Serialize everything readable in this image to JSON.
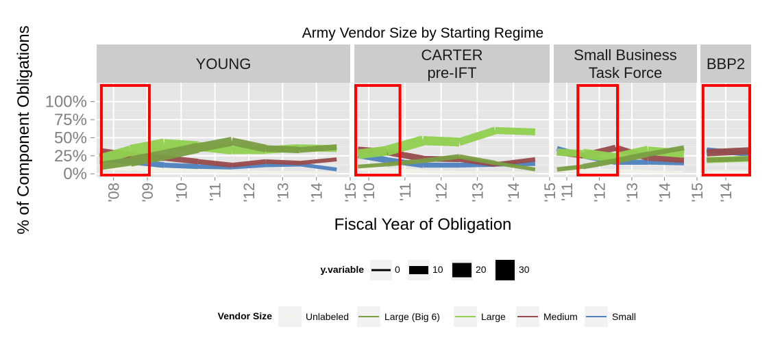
{
  "title": "Army Vendor Size by Starting Regime",
  "chart_data": {
    "type": "line",
    "title": "Army Vendor Size by Starting Regime",
    "xlabel": "Fiscal Year of Obligation",
    "ylabel": "% of Component Obligations",
    "ylim": [
      0,
      1
    ],
    "y_ticks": [
      "0%",
      "25%",
      "50%",
      "75%",
      "100%"
    ],
    "y_tick_values": [
      0,
      0.25,
      0.5,
      0.75,
      1
    ],
    "grid": true,
    "legend_position": "bottom",
    "size_legend": {
      "title": "y.variable",
      "entries": [
        {
          "label": "0",
          "value": 0
        },
        {
          "label": "10",
          "value": 10
        },
        {
          "label": "20",
          "value": 20
        },
        {
          "label": "30",
          "value": 30
        }
      ]
    },
    "color_legend": {
      "title": "Vendor Size",
      "entries": [
        {
          "label": "Unlabeled",
          "color": "#F2F2E8"
        },
        {
          "label": "Large (Big 6)",
          "color": "#7B9E43"
        },
        {
          "label": "Large",
          "color": "#92D050"
        },
        {
          "label": "Medium",
          "color": "#984B4B"
        },
        {
          "label": "Small",
          "color": "#4F81BD"
        }
      ]
    },
    "panels": [
      {
        "label": "YOUNG",
        "xlim": [
          2007.5,
          2015
        ],
        "x_ticks": [
          2008,
          2009,
          2010,
          2011,
          2012,
          2013,
          2014,
          2015
        ],
        "x_tick_labels": [
          "'08",
          "'09",
          "'10",
          "'11",
          "'12",
          "'13",
          "'14",
          "'15"
        ],
        "highlight": [
          2007.6,
          2009.1
        ],
        "series": [
          {
            "vendor": "Unlabeled",
            "x": [
              2007.6,
              2008.5,
              2009.5,
              2010.5,
              2011.5,
              2012.5,
              2013.5,
              2014.6
            ],
            "y": [
              0.1,
              0.08,
              0.05,
              0.04,
              0.03,
              0.02,
              0.02,
              0.01
            ],
            "size": [
              10,
              8,
              6,
              5,
              4,
              3,
              3,
              2
            ]
          },
          {
            "vendor": "Small",
            "x": [
              2007.6,
              2008.5,
              2009.5,
              2010.5,
              2011.5,
              2012.5,
              2013.5,
              2014.6
            ],
            "y": [
              0.22,
              0.17,
              0.12,
              0.1,
              0.09,
              0.12,
              0.13,
              0.06
            ],
            "size": [
              10,
              8,
              7,
              6,
              5,
              5,
              5,
              4
            ]
          },
          {
            "vendor": "Medium",
            "x": [
              2007.6,
              2008.5,
              2009.5,
              2010.5,
              2011.5,
              2012.5,
              2013.5,
              2014.6
            ],
            "y": [
              0.31,
              0.25,
              0.22,
              0.17,
              0.12,
              0.17,
              0.15,
              0.2
            ],
            "size": [
              10,
              9,
              8,
              7,
              6,
              6,
              5,
              5
            ]
          },
          {
            "vendor": "Large",
            "x": [
              2007.6,
              2008.5,
              2009.5,
              2010.5,
              2011.5,
              2012.5,
              2013.5,
              2014.6
            ],
            "y": [
              0.2,
              0.32,
              0.41,
              0.38,
              0.33,
              0.33,
              0.36,
              0.35
            ],
            "size": [
              12,
              18,
              16,
              14,
              12,
              11,
              10,
              9
            ]
          },
          {
            "vendor": "Large (Big 6)",
            "x": [
              2007.6,
              2008.5,
              2009.5,
              2010.5,
              2011.5,
              2012.5,
              2013.5,
              2014.6
            ],
            "y": [
              0.11,
              0.17,
              0.26,
              0.36,
              0.45,
              0.35,
              0.33,
              0.37
            ],
            "size": [
              10,
              14,
              16,
              14,
              12,
              10,
              8,
              7
            ]
          }
        ]
      },
      {
        "label": "CARTER\npre-IFT",
        "xlim": [
          2009.6,
          2015
        ],
        "x_ticks": [
          2010,
          2011,
          2012,
          2013,
          2014,
          2015
        ],
        "x_tick_labels": [
          "'10",
          "'11",
          "'12",
          "'13",
          "'14",
          "'15"
        ],
        "highlight": [
          2009.6,
          2010.9
        ],
        "series": [
          {
            "vendor": "Unlabeled",
            "x": [
              2009.7,
              2010.5,
              2011.5,
              2012.5,
              2013.5,
              2014.6
            ],
            "y": [
              0.08,
              0.05,
              0.03,
              0.02,
              0.02,
              0.01
            ],
            "size": [
              8,
              6,
              4,
              3,
              3,
              2
            ]
          },
          {
            "vendor": "Small",
            "x": [
              2009.7,
              2010.5,
              2011.5,
              2012.5,
              2013.5,
              2014.6
            ],
            "y": [
              0.26,
              0.19,
              0.12,
              0.12,
              0.13,
              0.14
            ],
            "size": [
              9,
              8,
              7,
              6,
              6,
              5
            ]
          },
          {
            "vendor": "Medium",
            "x": [
              2009.7,
              2010.5,
              2011.5,
              2012.5,
              2013.5,
              2014.6
            ],
            "y": [
              0.33,
              0.3,
              0.21,
              0.2,
              0.13,
              0.2
            ],
            "size": [
              10,
              9,
              8,
              7,
              6,
              5
            ]
          },
          {
            "vendor": "Large",
            "x": [
              2009.7,
              2010.5,
              2011.5,
              2012.5,
              2013.5,
              2014.6
            ],
            "y": [
              0.27,
              0.32,
              0.46,
              0.44,
              0.6,
              0.58
            ],
            "size": [
              12,
              16,
              14,
              12,
              10,
              9
            ]
          },
          {
            "vendor": "Large (Big 6)",
            "x": [
              2009.7,
              2010.5,
              2011.5,
              2012.5,
              2013.5,
              2014.6
            ],
            "y": [
              0.1,
              0.13,
              0.18,
              0.24,
              0.15,
              0.06
            ],
            "size": [
              4,
              5,
              6,
              6,
              5,
              4
            ]
          }
        ]
      },
      {
        "label": "Small Business\nTask Force",
        "xlim": [
          2010.6,
          2015
        ],
        "x_ticks": [
          2011,
          2012,
          2013,
          2014,
          2015
        ],
        "x_tick_labels": [
          "'11",
          "'12",
          "'13",
          "'14",
          "'15"
        ],
        "highlight": [
          2011.3,
          2012.6
        ],
        "series": [
          {
            "vendor": "Unlabeled",
            "x": [
              2010.7,
              2011.5,
              2012.5,
              2013.5,
              2014.6
            ],
            "y": [
              0.06,
              0.05,
              0.04,
              0.03,
              0.02
            ],
            "size": [
              5,
              5,
              4,
              3,
              3
            ]
          },
          {
            "vendor": "Small",
            "x": [
              2010.7,
              2011.5,
              2012.5,
              2013.5,
              2014.6
            ],
            "y": [
              0.35,
              0.25,
              0.16,
              0.16,
              0.15
            ],
            "size": [
              6,
              7,
              7,
              6,
              6
            ]
          },
          {
            "vendor": "Medium",
            "x": [
              2010.7,
              2011.5,
              2012.5,
              2013.5,
              2014.6
            ],
            "y": [
              0.3,
              0.25,
              0.36,
              0.22,
              0.19
            ],
            "size": [
              7,
              8,
              9,
              8,
              7
            ]
          },
          {
            "vendor": "Large",
            "x": [
              2010.7,
              2011.5,
              2012.5,
              2013.5,
              2014.6
            ],
            "y": [
              0.3,
              0.28,
              0.22,
              0.32,
              0.28
            ],
            "size": [
              8,
              12,
              16,
              13,
              11
            ]
          },
          {
            "vendor": "Large (Big 6)",
            "x": [
              2010.7,
              2011.5,
              2012.5,
              2013.5,
              2014.6
            ],
            "y": [
              0.06,
              0.1,
              0.18,
              0.27,
              0.36
            ],
            "size": [
              5,
              6,
              8,
              7,
              6
            ]
          }
        ]
      },
      {
        "label": "BBP2",
        "xlim": [
          2013.6,
          2014.4
        ],
        "x_ticks": [
          2014
        ],
        "x_tick_labels": [
          "'14"
        ],
        "highlight": [
          2013.62,
          2014.4
        ],
        "series": [
          {
            "vendor": "Unlabeled",
            "x": [
              2013.7,
              2014.4
            ],
            "y": [
              0.03,
              0.03
            ],
            "size": [
              4,
              4
            ]
          },
          {
            "vendor": "Small",
            "x": [
              2013.7,
              2014.4
            ],
            "y": [
              0.33,
              0.27
            ],
            "size": [
              7,
              7
            ]
          },
          {
            "vendor": "Medium",
            "x": [
              2013.7,
              2014.4
            ],
            "y": [
              0.29,
              0.32
            ],
            "size": [
              10,
              10
            ]
          },
          {
            "vendor": "Large",
            "x": [
              2013.7,
              2014.4
            ],
            "y": [
              0.19,
              0.21
            ],
            "size": [
              8,
              8
            ]
          },
          {
            "vendor": "Large (Big 6)",
            "x": [
              2013.7,
              2014.4
            ],
            "y": [
              0.19,
              0.21
            ],
            "size": [
              6,
              6
            ]
          }
        ]
      }
    ]
  }
}
